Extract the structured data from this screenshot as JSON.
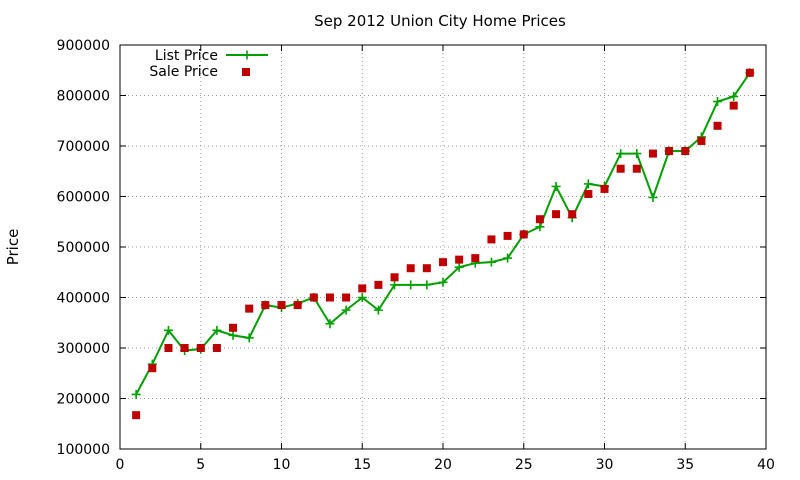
{
  "chart_data": {
    "type": "line",
    "title": "Sep 2012 Union City Home Prices",
    "xlabel": "",
    "ylabel": "Price",
    "xlim": [
      0,
      40
    ],
    "ylim": [
      100000,
      900000
    ],
    "xticks": [
      0,
      5,
      10,
      15,
      20,
      25,
      30,
      35,
      40
    ],
    "yticks": [
      100000,
      200000,
      300000,
      400000,
      500000,
      600000,
      700000,
      800000,
      900000
    ],
    "grid": true,
    "legend_position": "top-left",
    "series": [
      {
        "name": "List Price",
        "kind": "line",
        "marker": "plus",
        "color": "#00a000",
        "x": [
          1,
          2,
          3,
          4,
          5,
          6,
          7,
          8,
          9,
          10,
          11,
          12,
          13,
          14,
          15,
          16,
          17,
          18,
          19,
          20,
          21,
          22,
          23,
          24,
          25,
          26,
          27,
          28,
          29,
          30,
          31,
          32,
          33,
          34,
          35,
          36,
          37,
          38,
          39
        ],
        "y": [
          208000,
          268000,
          335000,
          295000,
          298000,
          335000,
          325000,
          320000,
          385000,
          380000,
          388000,
          400000,
          348000,
          375000,
          400000,
          375000,
          425000,
          425000,
          425000,
          430000,
          460000,
          468000,
          470000,
          478000,
          525000,
          540000,
          620000,
          558000,
          625000,
          620000,
          685000,
          685000,
          598000,
          690000,
          690000,
          718000,
          788000,
          798000,
          845000
        ]
      },
      {
        "name": "Sale Price",
        "kind": "scatter",
        "marker": "square",
        "color": "#c00000",
        "x": [
          1,
          2,
          3,
          4,
          5,
          6,
          7,
          8,
          9,
          10,
          11,
          12,
          13,
          14,
          15,
          16,
          17,
          18,
          19,
          20,
          21,
          22,
          23,
          24,
          25,
          26,
          27,
          28,
          29,
          30,
          31,
          32,
          33,
          34,
          35,
          36,
          37,
          38,
          39
        ],
        "y": [
          167000,
          260000,
          300000,
          300000,
          300000,
          300000,
          340000,
          378000,
          385000,
          385000,
          385000,
          400000,
          400000,
          400000,
          418000,
          425000,
          440000,
          458000,
          458000,
          470000,
          475000,
          478000,
          515000,
          522000,
          525000,
          555000,
          565000,
          565000,
          605000,
          615000,
          655000,
          655000,
          685000,
          690000,
          690000,
          710000,
          740000,
          780000,
          845000
        ]
      }
    ]
  }
}
